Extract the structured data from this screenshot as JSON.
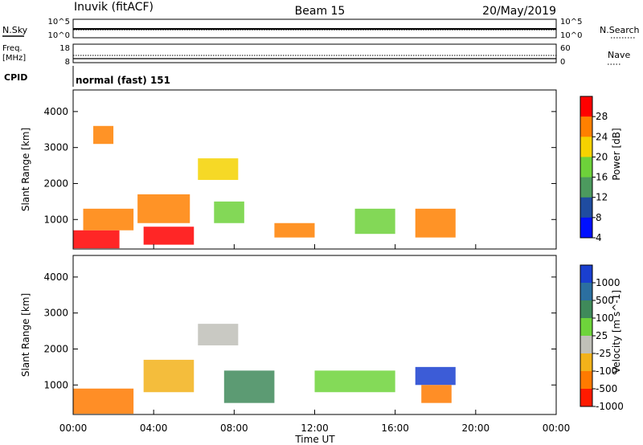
{
  "header": {
    "title_left": "Inuvik (fitACF)",
    "title_center": "Beam 15",
    "title_right": "20/May/2019"
  },
  "noise_panel": {
    "left_label": "N.Sky",
    "right_label": "N.Search",
    "left_top_tick": "10^5",
    "left_bottom_tick": "10^0",
    "right_top_tick": "10^5",
    "right_bottom_tick": "10^0"
  },
  "freq_panel": {
    "left_label_line1": "Freq.",
    "left_label_line2": "[MHz]",
    "right_label": "Nave",
    "left_top_tick": "18",
    "left_bottom_tick": "8",
    "right_top_tick": "60",
    "right_bottom_tick": "0"
  },
  "cpid_panel": {
    "label": "CPID",
    "mode_text": "normal (fast) 151"
  },
  "x_axis": {
    "label": "Time UT",
    "ticks": [
      "00:00",
      "04:00",
      "08:00",
      "12:00",
      "16:00",
      "20:00",
      "00:00"
    ]
  },
  "chart_data": [
    {
      "type": "heatmap",
      "panel": "power",
      "ylabel": "Slant Range [km]",
      "yticks": [
        1000,
        2000,
        3000,
        4000
      ],
      "ylim": [
        180,
        4600
      ],
      "xlim_hours": [
        0,
        24
      ],
      "colorbar_label": "Power [dB]",
      "colorbar_ticks": [
        "28",
        "24",
        "20",
        "16",
        "12",
        "8",
        "4"
      ],
      "colorbar_colors": [
        "#ff0000",
        "#ff8000",
        "#f5d200",
        "#6dd13a",
        "#4c9a5e",
        "#1f4ca0",
        "#0010ff"
      ],
      "regions": [
        {
          "t0": 0.0,
          "t1": 2.3,
          "r0": 200,
          "r1": 700,
          "level": 0
        },
        {
          "t0": 0.5,
          "t1": 3.0,
          "r0": 700,
          "r1": 1300,
          "level": 1
        },
        {
          "t0": 1.0,
          "t1": 2.0,
          "r0": 3100,
          "r1": 3600,
          "level": 1
        },
        {
          "t0": 3.5,
          "t1": 6.0,
          "r0": 300,
          "r1": 800,
          "level": 0
        },
        {
          "t0": 3.2,
          "t1": 5.8,
          "r0": 900,
          "r1": 1700,
          "level": 1
        },
        {
          "t0": 6.2,
          "t1": 8.2,
          "r0": 2100,
          "r1": 2700,
          "level": 2
        },
        {
          "t0": 7.0,
          "t1": 8.5,
          "r0": 900,
          "r1": 1500,
          "level": 3
        },
        {
          "t0": 10.0,
          "t1": 12.0,
          "r0": 500,
          "r1": 900,
          "level": 1
        },
        {
          "t0": 14.0,
          "t1": 16.0,
          "r0": 600,
          "r1": 1300,
          "level": 3
        },
        {
          "t0": 17.0,
          "t1": 19.0,
          "r0": 500,
          "r1": 1300,
          "level": 1
        }
      ]
    },
    {
      "type": "heatmap",
      "panel": "velocity",
      "ylabel": "Slant Range [km]",
      "yticks": [
        1000,
        2000,
        3000,
        4000
      ],
      "ylim": [
        180,
        4600
      ],
      "xlim_hours": [
        0,
        24
      ],
      "colorbar_label": "Velocity [m s^-1]",
      "colorbar_ticks": [
        "1000",
        "500",
        "100",
        "25",
        "-25",
        "-100",
        "-500",
        "-1000"
      ],
      "colorbar_colors": [
        "#1a3fd0",
        "#2b6fa0",
        "#3f8a5a",
        "#6ed43b",
        "#c0c0b8",
        "#f2b21a",
        "#ff7a00",
        "#ff1a00"
      ],
      "regions": [
        {
          "t0": 0.0,
          "t1": 3.0,
          "r0": 200,
          "r1": 900,
          "level": 6
        },
        {
          "t0": 3.5,
          "t1": 6.0,
          "r0": 800,
          "r1": 1700,
          "level": 5
        },
        {
          "t0": 6.2,
          "t1": 8.2,
          "r0": 2100,
          "r1": 2700,
          "level": 4
        },
        {
          "t0": 7.5,
          "t1": 10.0,
          "r0": 500,
          "r1": 1400,
          "level": 2
        },
        {
          "t0": 12.0,
          "t1": 16.0,
          "r0": 800,
          "r1": 1400,
          "level": 3
        },
        {
          "t0": 17.0,
          "t1": 19.0,
          "r0": 1000,
          "r1": 1500,
          "level": 0
        },
        {
          "t0": 17.3,
          "t1": 18.8,
          "r0": 500,
          "r1": 1000,
          "level": 6
        }
      ]
    }
  ]
}
